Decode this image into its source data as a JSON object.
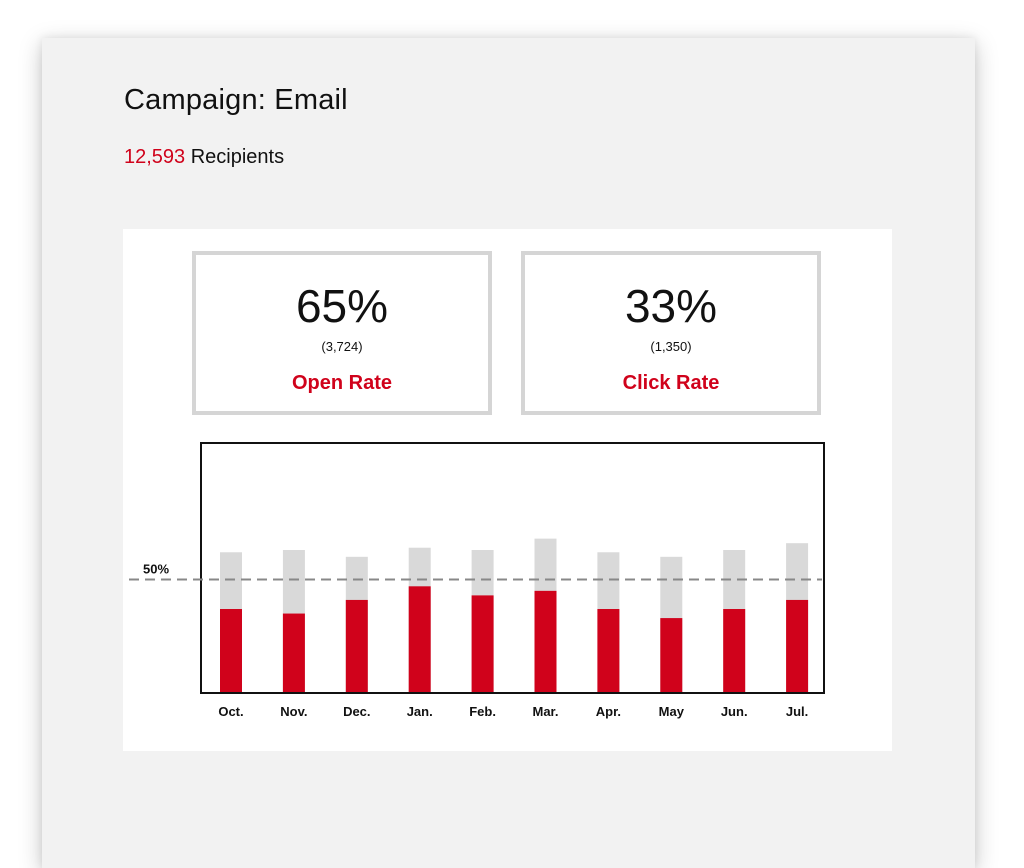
{
  "campaign": {
    "title": "Campaign: Email",
    "recipients_count": "12,593",
    "recipients_label": " Recipients"
  },
  "kpis": [
    {
      "value": "65%",
      "sub": "(3,724)",
      "label": "Open Rate"
    },
    {
      "value": "33%",
      "sub": "(1,350)",
      "label": "Click Rate"
    }
  ],
  "colors": {
    "accent": "#d0021b",
    "bar_background": "#d9d9d9",
    "reference_line": "#888888"
  },
  "chart_data": {
    "type": "bar",
    "categories": [
      "Oct.",
      "Nov.",
      "Dec.",
      "Jan.",
      "Feb.",
      "Mar.",
      "Apr.",
      "May",
      "Jun.",
      "Jul."
    ],
    "series": [
      {
        "values": [
          62,
          63,
          60,
          64,
          63,
          68,
          62,
          60,
          63,
          66
        ]
      },
      {
        "values": [
          37,
          35,
          41,
          47,
          43,
          45,
          37,
          33,
          37,
          41
        ]
      }
    ],
    "reference_line": {
      "value": 50,
      "label": "50%"
    },
    "ylim": [
      0,
      100
    ],
    "stacking": "overlay",
    "grid": false,
    "legend": "none"
  }
}
